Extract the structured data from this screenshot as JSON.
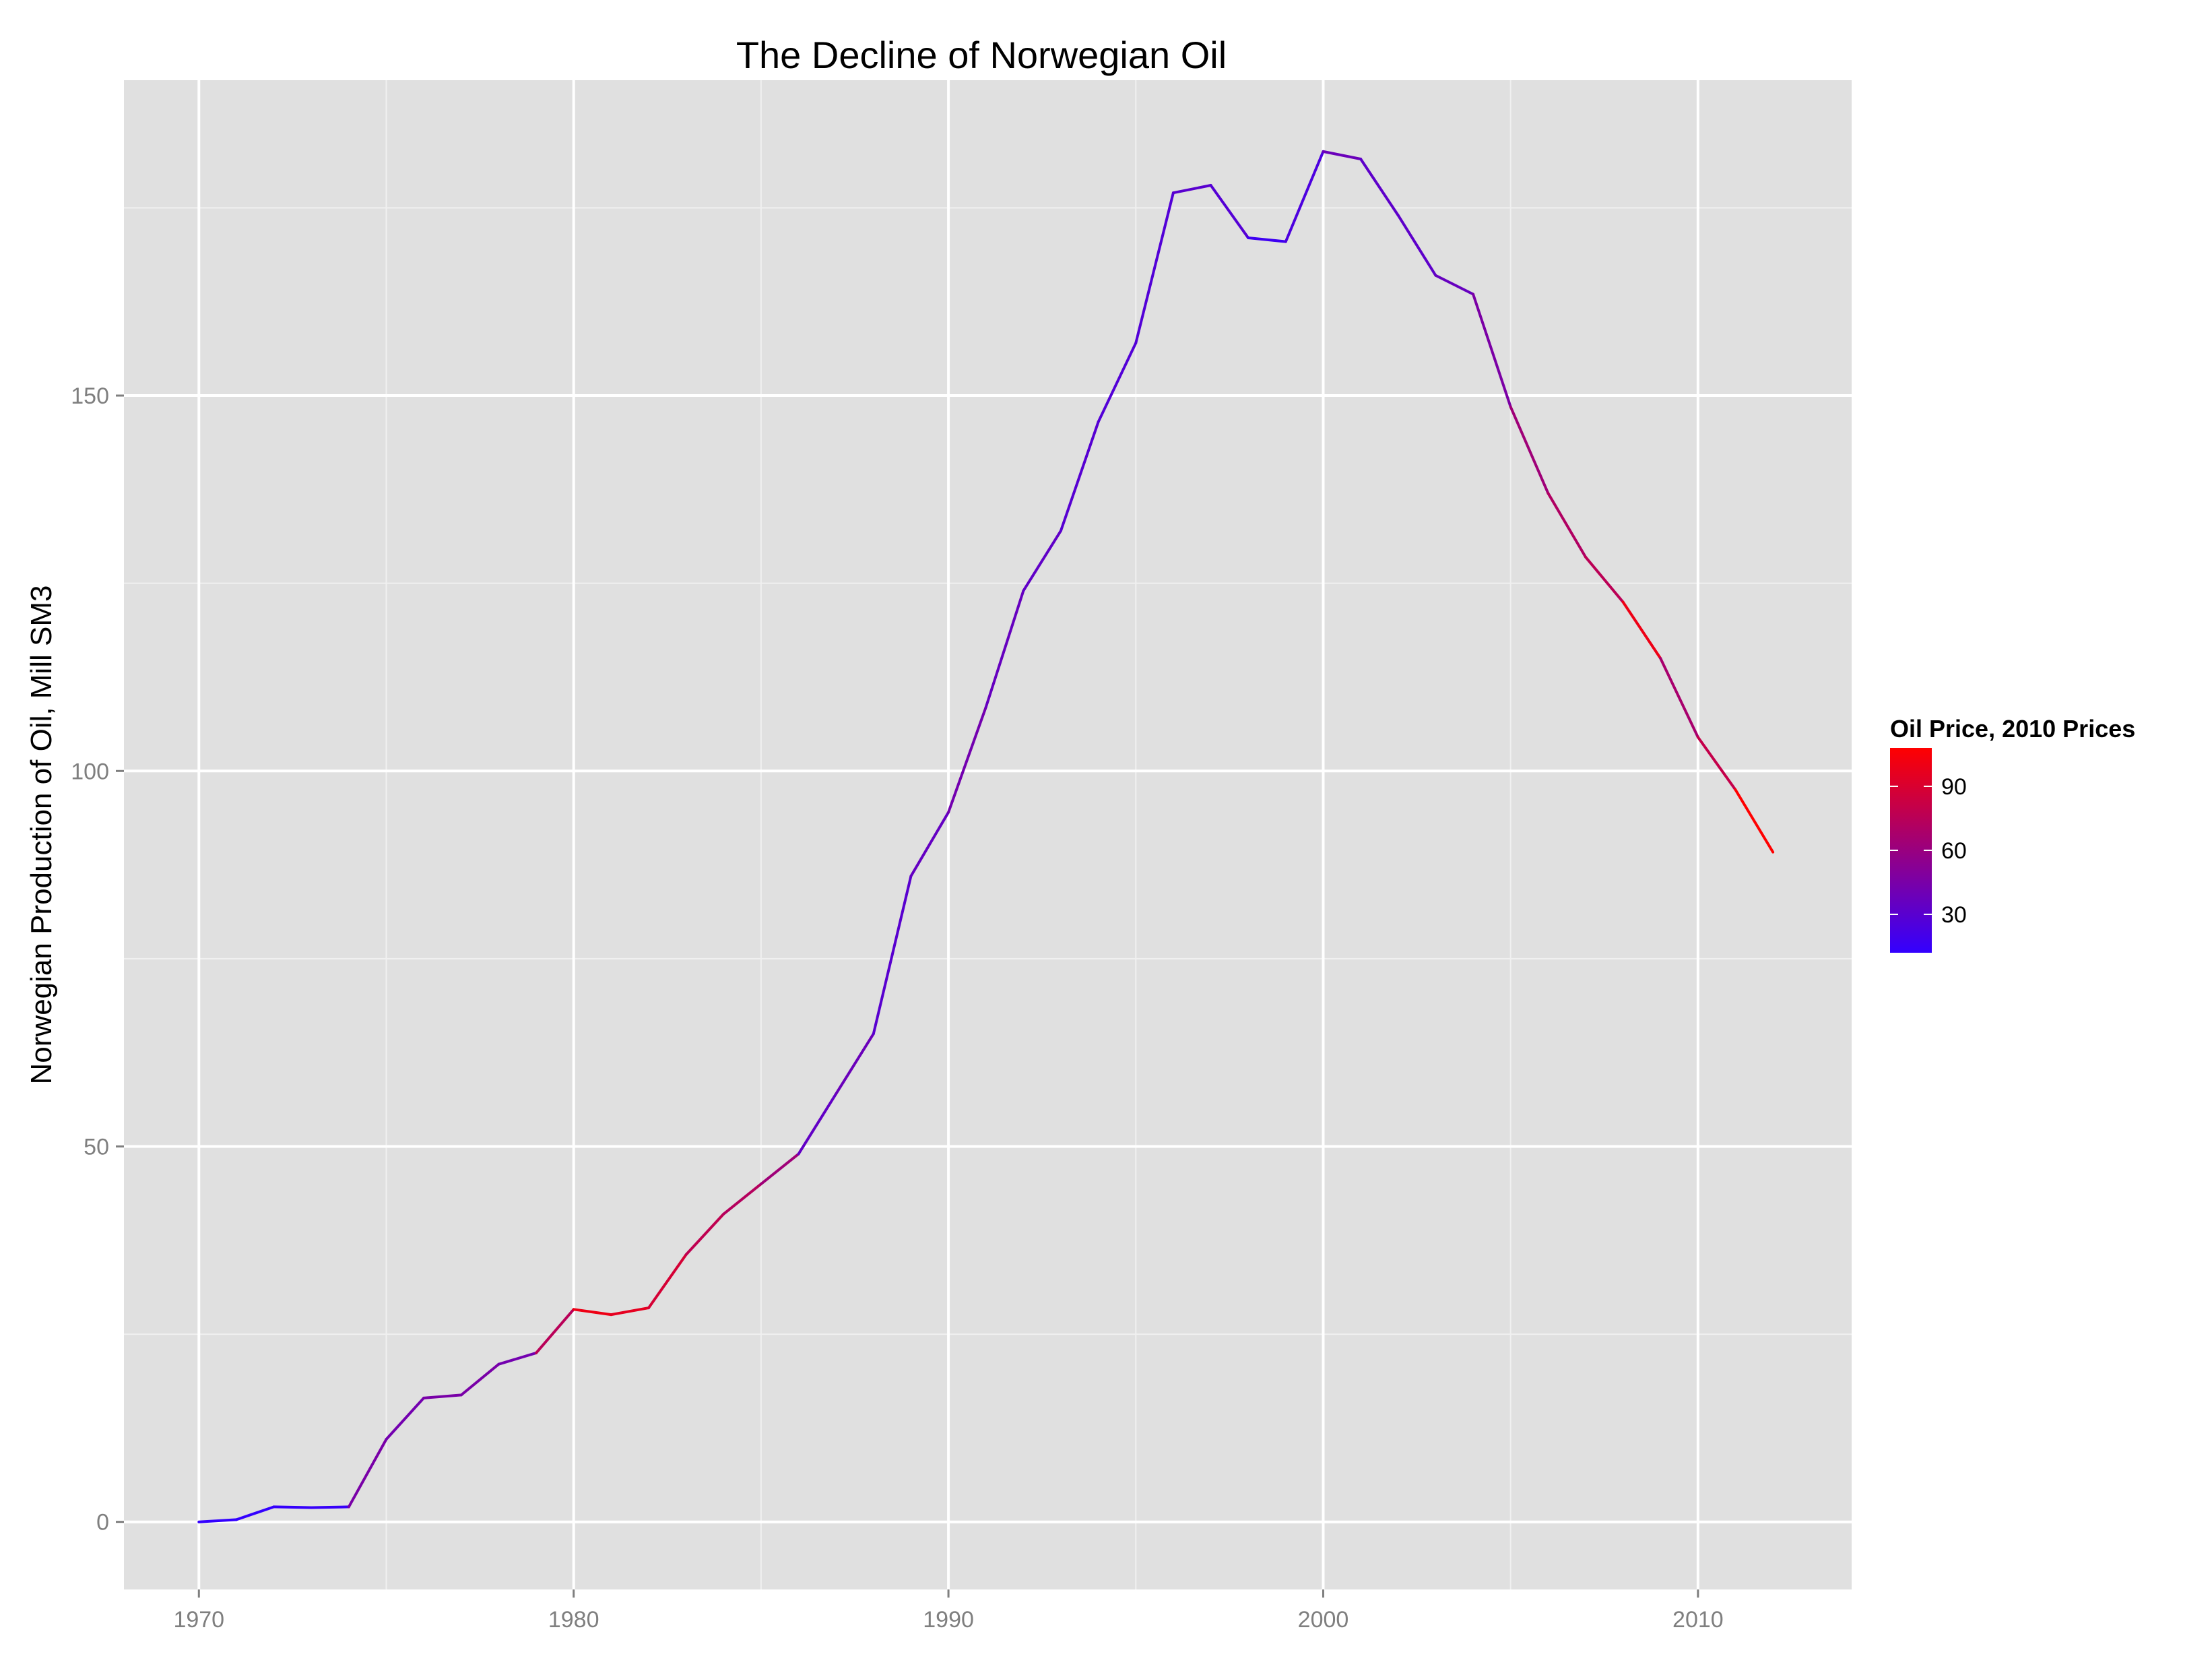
{
  "chart_data": {
    "type": "line",
    "title": "The Decline of Norwegian Oil",
    "xlabel": "",
    "ylabel": "Norwegian Production of Oil, Mill SM3",
    "xlim": [
      1968,
      2014.1
    ],
    "ylim": [
      -9,
      192
    ],
    "x_ticks": [
      1970,
      1980,
      1990,
      2000,
      2010
    ],
    "y_ticks": [
      0,
      50,
      100,
      150
    ],
    "grid": true,
    "legend": {
      "title": "Oil Price, 2010 Prices",
      "placement": "right",
      "range": [
        12,
        108
      ],
      "ticks": [
        30,
        60,
        90
      ],
      "low_color": "#3300ff",
      "high_color": "#ff0000"
    },
    "series": [
      {
        "color_by": "price",
        "x": [
          1970,
          1971,
          1972,
          1973,
          1974,
          1975,
          1976,
          1977,
          1978,
          1979,
          1980,
          1981,
          1982,
          1983,
          1984,
          1985,
          1986,
          1987,
          1988,
          1989,
          1990,
          1991,
          1992,
          1993,
          1994,
          1995,
          1996,
          1997,
          1998,
          1999,
          2000,
          2001,
          2002,
          2003,
          2004,
          2005,
          2006,
          2007,
          2008,
          2009,
          2010,
          2011,
          2012
        ],
        "y": [
          0,
          0.3,
          2,
          1.9,
          2,
          11,
          16.5,
          16.9,
          21,
          22.5,
          28.3,
          27.6,
          28.5,
          35.6,
          41,
          45,
          49,
          57,
          65,
          86,
          94.5,
          108.5,
          124,
          132,
          146.5,
          157,
          177,
          178,
          171,
          170.5,
          182.5,
          181.5,
          174,
          166,
          163.5,
          148.5,
          137,
          128.5,
          122.5,
          115,
          104.5,
          97.5,
          89.2
        ],
        "price": [
          12,
          12,
          13,
          14,
          45,
          42,
          45,
          45,
          42,
          75,
          100,
          96,
          88,
          78,
          73,
          63,
          34,
          38,
          30,
          35,
          42,
          36,
          33,
          29,
          27,
          27,
          30,
          28,
          17,
          24,
          38,
          32,
          32,
          36,
          46,
          63,
          71,
          76,
          100,
          67,
          80,
          108,
          106
        ]
      }
    ]
  }
}
